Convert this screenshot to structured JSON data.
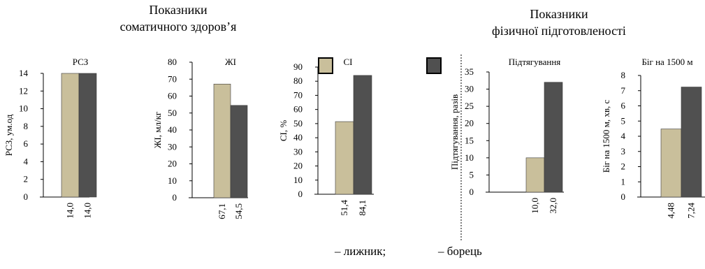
{
  "headings": {
    "somatic": [
      "Показники",
      "соматичного здоров’я"
    ],
    "physical": [
      "Показники",
      "фізичної підготовленості"
    ]
  },
  "legend": {
    "skier": "– лижник;",
    "wrestler": "– борець"
  },
  "colors": {
    "skier": "#c9bf9b",
    "wrestler": "#505050",
    "axis": "#000000"
  },
  "chart_data": [
    {
      "type": "bar",
      "title": "РСЗ",
      "ylabel": "РСЗ, ум.од",
      "ylim": [
        0,
        14
      ],
      "yticks": [
        "0",
        "2",
        "4",
        "6",
        "8",
        "10",
        "12",
        "14"
      ],
      "series": [
        {
          "name": "лижник",
          "values": [
            14.0
          ]
        },
        {
          "name": "борець",
          "values": [
            14.0
          ]
        }
      ],
      "value_labels": [
        "14,0",
        "14,0"
      ]
    },
    {
      "type": "bar",
      "title": "ЖІ",
      "ylabel": "ЖІ, мл/кг",
      "ylim": [
        0,
        80
      ],
      "yticks": [
        "0",
        "10",
        "20",
        "30",
        "40",
        "50",
        "60",
        "70",
        "80"
      ],
      "series": [
        {
          "name": "лижник",
          "values": [
            67.1
          ]
        },
        {
          "name": "борець",
          "values": [
            54.5
          ]
        }
      ],
      "value_labels": [
        "67,1",
        "54,5"
      ]
    },
    {
      "type": "bar",
      "title": "СІ",
      "ylabel": "СІ, %",
      "ylim": [
        0,
        90
      ],
      "yticks": [
        "0",
        "10",
        "20",
        "30",
        "40",
        "50",
        "60",
        "70",
        "80",
        "90"
      ],
      "series": [
        {
          "name": "лижник",
          "values": [
            51.4
          ]
        },
        {
          "name": "борець",
          "values": [
            84.1
          ]
        }
      ],
      "value_labels": [
        "51,4",
        "84,1"
      ]
    },
    {
      "type": "bar",
      "title": "Підтягування",
      "ylabel": "Підтягування, разів",
      "ylim": [
        0,
        35
      ],
      "yticks": [
        "0",
        "5",
        "10",
        "15",
        "20",
        "25",
        "30",
        "35"
      ],
      "series": [
        {
          "name": "лижник",
          "values": [
            10.0
          ]
        },
        {
          "name": "борець",
          "values": [
            32.0
          ]
        }
      ],
      "value_labels": [
        "10,0",
        "32,0"
      ]
    },
    {
      "type": "bar",
      "title": "Біг на 1500 м",
      "ylabel": "Біг на 1500 м, хв, с",
      "ylim": [
        0,
        8
      ],
      "yticks": [
        "0",
        "1",
        "2",
        "3",
        "4",
        "5",
        "6",
        "7",
        "8"
      ],
      "series": [
        {
          "name": "лижник",
          "values": [
            4.48
          ]
        },
        {
          "name": "борець",
          "values": [
            7.24
          ]
        }
      ],
      "value_labels": [
        "4,48",
        "7,24"
      ]
    }
  ]
}
